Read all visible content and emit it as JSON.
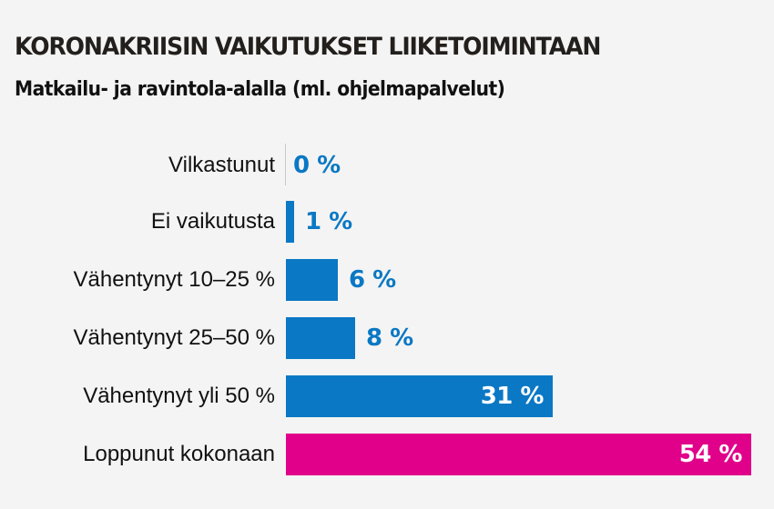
{
  "header": {
    "title": "KORONAKRIISIN VAIKUTUKSET LIIKETOIMINTAAN",
    "subtitle": "Matkailu- ja ravintola-alalla (ml. ohjelmapalvelut)"
  },
  "colors": {
    "background": "#f4f4f4",
    "bar_blue": "#0a78c4",
    "bar_magenta": "#e0008a",
    "text": "#111111"
  },
  "rows": [
    {
      "label": "Vilkastunut",
      "value": 0,
      "value_label": "0 %"
    },
    {
      "label": "Ei vaikutusta",
      "value": 1,
      "value_label": "1 %"
    },
    {
      "label": "Vähentynyt 10–25 %",
      "value": 6,
      "value_label": "6 %"
    },
    {
      "label": "Vähentynyt 25–50 %",
      "value": 8,
      "value_label": "8 %"
    },
    {
      "label": "Vähentynyt yli 50 %",
      "value": 31,
      "value_label": "31 %"
    },
    {
      "label": "Loppunut kokonaan",
      "value": 54,
      "value_label": "54 %"
    }
  ],
  "chart_data": {
    "type": "bar",
    "orientation": "horizontal",
    "title": "KORONAKRIISIN VAIKUTUKSET LIIKETOIMINTAAN",
    "subtitle": "Matkailu- ja ravintola-alalla (ml. ohjelmapalvelut)",
    "categories": [
      "Vilkastunut",
      "Ei vaikutusta",
      "Vähentynyt 10–25 %",
      "Vähentynyt 25–50 %",
      "Vähentynyt yli 50 %",
      "Loppunut kokonaan"
    ],
    "values": [
      0,
      1,
      6,
      8,
      31,
      54
    ],
    "value_labels": [
      "0 %",
      "1 %",
      "6 %",
      "8 %",
      "31 %",
      "54 %"
    ],
    "unit": "%",
    "bar_colors": [
      "#0a78c4",
      "#0a78c4",
      "#0a78c4",
      "#0a78c4",
      "#0a78c4",
      "#e0008a"
    ],
    "xlabel": "",
    "ylabel": "",
    "xlim": [
      0,
      54
    ],
    "grid": false,
    "legend": null
  }
}
